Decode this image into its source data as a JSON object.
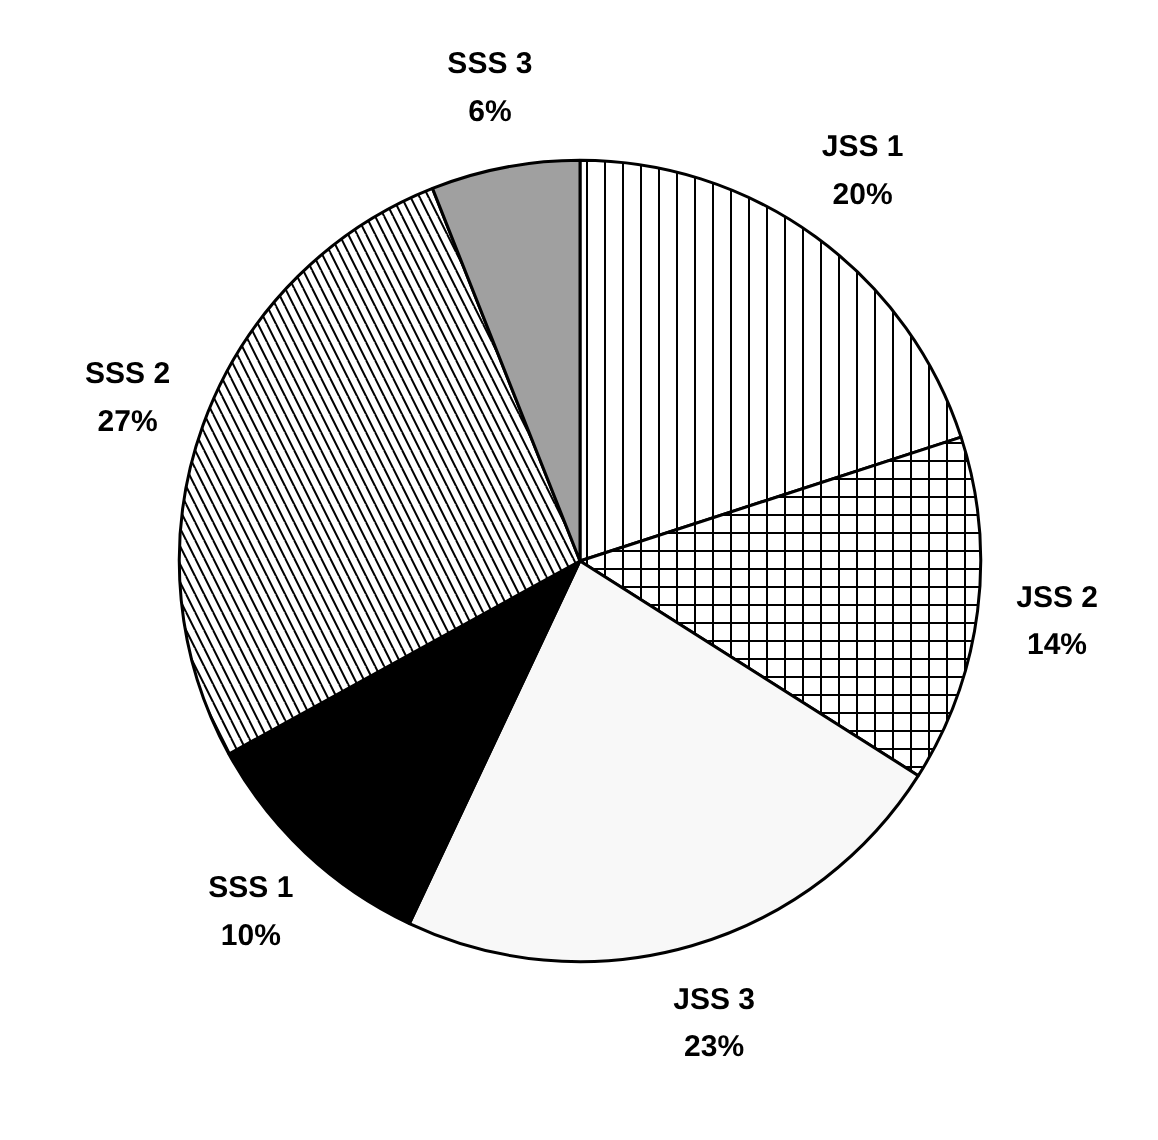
{
  "chart_data": {
    "type": "pie",
    "categories": [
      "JSS 1",
      "JSS 2",
      "JSS 3",
      "SSS 1",
      "SSS 2",
      "SSS 3"
    ],
    "values": [
      20,
      14,
      23,
      10,
      27,
      6
    ],
    "value_labels": [
      "20%",
      "14%",
      "23%",
      "10%",
      "27%",
      "6%"
    ],
    "colors": [
      "#ffffff",
      "#ffffff",
      "#f8f8f8",
      "#000000",
      "#ffffff",
      "#a0a0a0"
    ],
    "legend": false
  }
}
